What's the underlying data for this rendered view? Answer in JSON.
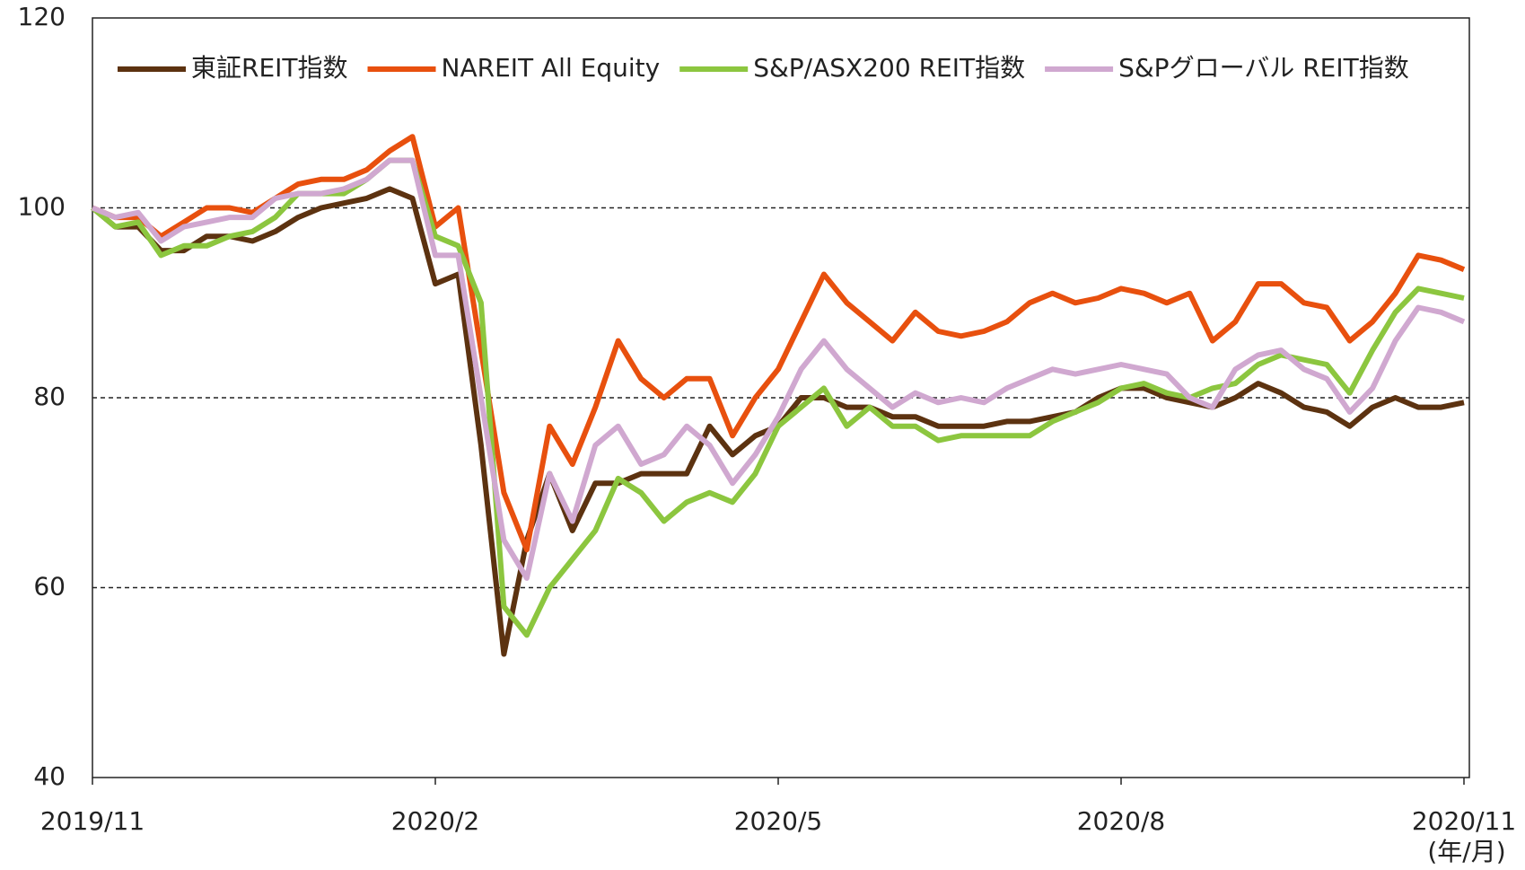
{
  "chart_data": {
    "type": "line",
    "annotation": "(年/月)",
    "categories": [
      "2019/11",
      null,
      null,
      null,
      null,
      null,
      null,
      null,
      null,
      null,
      null,
      null,
      null,
      null,
      null,
      "2020/2",
      null,
      null,
      null,
      null,
      null,
      null,
      null,
      null,
      null,
      null,
      null,
      null,
      null,
      null,
      "2020/5",
      null,
      null,
      null,
      null,
      null,
      null,
      null,
      null,
      null,
      null,
      null,
      null,
      null,
      null,
      "2020/8",
      null,
      null,
      null,
      null,
      null,
      null,
      null,
      null,
      null,
      null,
      null,
      null,
      null,
      null,
      "2020/11"
    ],
    "ylim": [
      40,
      120
    ],
    "yticks": [
      40,
      60,
      80,
      100,
      120
    ],
    "grid": true,
    "legend": "top",
    "series": [
      {
        "name": "東証REIT指数",
        "color": "#5c3210",
        "values": [
          100,
          98,
          98,
          95.5,
          95.5,
          97,
          97,
          96.5,
          97.5,
          99,
          100,
          100.5,
          101,
          102,
          101,
          92,
          93,
          75,
          53,
          65,
          72,
          66,
          71,
          71,
          72,
          72,
          72,
          77,
          74,
          76,
          77,
          80,
          80,
          79,
          79,
          78,
          78,
          77,
          77,
          77,
          77.5,
          77.5,
          78,
          78.5,
          80,
          81,
          81,
          80,
          79.5,
          79,
          80,
          81.5,
          80.5,
          79,
          78.5,
          77,
          79,
          80,
          79,
          79,
          79.5
        ]
      },
      {
        "name": "NAREIT All Equity",
        "color": "#e8500e",
        "values": [
          100,
          99,
          99,
          97,
          98.5,
          100,
          100,
          99.5,
          101,
          102.5,
          103,
          103,
          104,
          106,
          107.5,
          98,
          100,
          85,
          70,
          64,
          77,
          73,
          79,
          86,
          82,
          80,
          82,
          82,
          76,
          80,
          83,
          88,
          93,
          90,
          88,
          86,
          89,
          87,
          86.5,
          87,
          88,
          90,
          91,
          90,
          90.5,
          91.5,
          91,
          90,
          91,
          86,
          88,
          92,
          92,
          90,
          89.5,
          86,
          88,
          91,
          95,
          94.5,
          93.5
        ]
      },
      {
        "name": "S&P/ASX200 REIT指数",
        "color": "#8cc63f",
        "values": [
          100,
          98,
          98.5,
          95,
          96,
          96,
          97,
          97.5,
          99,
          101.5,
          101.5,
          101.5,
          103,
          105,
          105,
          97,
          96,
          90,
          58,
          55,
          60,
          63,
          66,
          71.5,
          70,
          67,
          69,
          70,
          69,
          72,
          77,
          79,
          81,
          77,
          79,
          77,
          77,
          75.5,
          76,
          76,
          76,
          76,
          77.5,
          78.5,
          79.5,
          81,
          81.5,
          80.5,
          80,
          81,
          81.5,
          83.5,
          84.5,
          84,
          83.5,
          80.5,
          85,
          89,
          91.5,
          91,
          90.5
        ]
      },
      {
        "name": "S&Pグローバル REIT指数",
        "color": "#d0a8d0",
        "values": [
          100,
          99,
          99.5,
          96.5,
          98,
          98.5,
          99,
          99,
          101,
          101.5,
          101.5,
          102,
          103,
          105,
          105,
          95,
          95,
          80,
          65,
          61,
          72,
          67,
          75,
          77,
          73,
          74,
          77,
          75,
          71,
          74,
          78,
          83,
          86,
          83,
          81,
          79,
          80.5,
          79.5,
          80,
          79.5,
          81,
          82,
          83,
          82.5,
          83,
          83.5,
          83,
          82.5,
          80,
          79,
          83,
          84.5,
          85,
          83,
          82,
          78.5,
          81,
          86,
          89.5,
          89,
          88
        ]
      }
    ]
  }
}
